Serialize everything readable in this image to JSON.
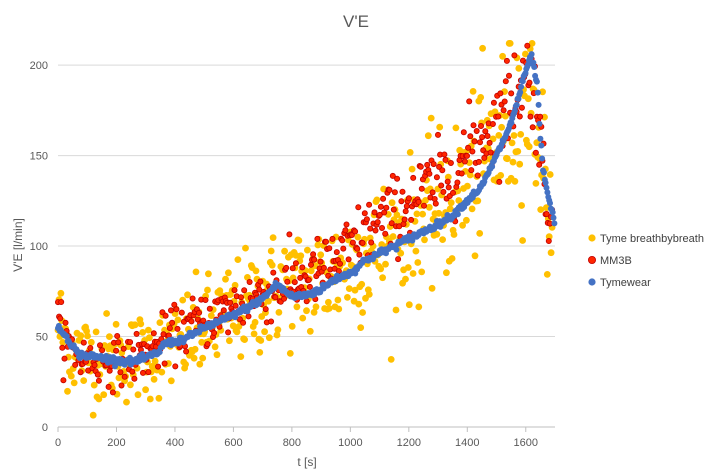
{
  "chart_data": {
    "type": "scatter",
    "title": "V'E",
    "xlabel": "t [s]",
    "ylabel": "V'E [l/min]",
    "xlim": [
      0,
      1700
    ],
    "ylim": [
      0,
      210
    ],
    "xticks": [
      "0",
      "200",
      "400",
      "600",
      "800",
      "1000",
      "1200",
      "1400",
      "1600"
    ],
    "xtick_values": [
      0,
      200,
      400,
      600,
      800,
      1000,
      1200,
      1400,
      1600
    ],
    "yticks": [
      "0",
      "50",
      "100",
      "150",
      "200"
    ],
    "ytick_values": [
      0,
      50,
      100,
      150,
      200
    ],
    "grid": "horizontal",
    "legend_position": "right",
    "series": [
      {
        "name": "Tyme breathbybreath",
        "color": "#FFC000",
        "anchors": [
          [
            0,
            58
          ],
          [
            40,
            44
          ],
          [
            70,
            40
          ],
          [
            150,
            38
          ],
          [
            250,
            38
          ],
          [
            350,
            42
          ],
          [
            450,
            50
          ],
          [
            550,
            58
          ],
          [
            650,
            67
          ],
          [
            750,
            76
          ],
          [
            850,
            80
          ],
          [
            950,
            85
          ],
          [
            1050,
            95
          ],
          [
            1150,
            103
          ],
          [
            1250,
            113
          ],
          [
            1350,
            125
          ],
          [
            1450,
            145
          ],
          [
            1520,
            162
          ],
          [
            1560,
            172
          ],
          [
            1600,
            182
          ],
          [
            1630,
            178
          ],
          [
            1650,
            155
          ],
          [
            1670,
            130
          ],
          [
            1690,
            110
          ]
        ],
        "spread": 14,
        "count": 520
      },
      {
        "name": "MM3B",
        "color": "#FF2600",
        "anchors": [
          [
            0,
            56
          ],
          [
            30,
            46
          ],
          [
            80,
            38
          ],
          [
            200,
            36
          ],
          [
            300,
            40
          ],
          [
            380,
            50
          ],
          [
            450,
            56
          ],
          [
            550,
            62
          ],
          [
            650,
            70
          ],
          [
            750,
            77
          ],
          [
            850,
            82
          ],
          [
            950,
            92
          ],
          [
            1050,
            107
          ],
          [
            1150,
            118
          ],
          [
            1250,
            130
          ],
          [
            1350,
            140
          ],
          [
            1420,
            155
          ],
          [
            1500,
            168
          ],
          [
            1560,
            185
          ],
          [
            1600,
            195
          ],
          [
            1630,
            188
          ],
          [
            1650,
            155
          ],
          [
            1670,
            128
          ],
          [
            1690,
            115
          ]
        ],
        "spread": 7,
        "count": 460
      },
      {
        "name": "Tymewear",
        "color": "#4472C4",
        "anchors": [
          [
            0,
            54
          ],
          [
            20,
            52
          ],
          [
            50,
            45
          ],
          [
            70,
            40
          ],
          [
            120,
            39
          ],
          [
            200,
            37
          ],
          [
            250,
            36
          ],
          [
            300,
            38
          ],
          [
            350,
            42
          ],
          [
            360,
            46
          ],
          [
            400,
            47
          ],
          [
            450,
            50
          ],
          [
            500,
            55
          ],
          [
            550,
            58
          ],
          [
            600,
            62
          ],
          [
            650,
            66
          ],
          [
            700,
            71
          ],
          [
            750,
            79
          ],
          [
            770,
            76
          ],
          [
            800,
            72
          ],
          [
            850,
            73
          ],
          [
            900,
            76
          ],
          [
            950,
            82
          ],
          [
            1000,
            85
          ],
          [
            1050,
            92
          ],
          [
            1100,
            96
          ],
          [
            1150,
            100
          ],
          [
            1200,
            104
          ],
          [
            1250,
            108
          ],
          [
            1300,
            112
          ],
          [
            1350,
            117
          ],
          [
            1400,
            125
          ],
          [
            1450,
            133
          ],
          [
            1500,
            150
          ],
          [
            1550,
            168
          ],
          [
            1580,
            185
          ],
          [
            1600,
            197
          ],
          [
            1620,
            205
          ],
          [
            1640,
            188
          ],
          [
            1650,
            160
          ],
          [
            1660,
            140
          ],
          [
            1680,
            125
          ],
          [
            1700,
            112
          ]
        ],
        "spread": 0
      }
    ]
  }
}
